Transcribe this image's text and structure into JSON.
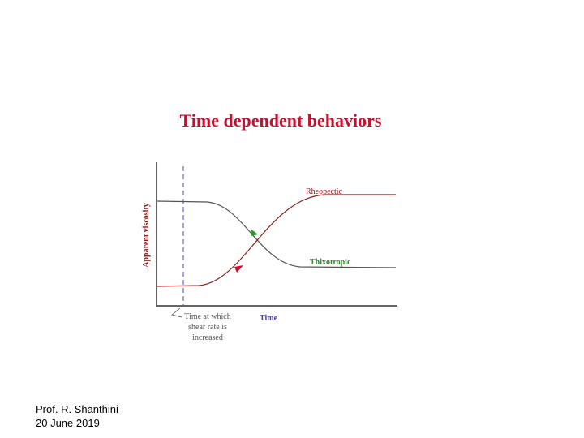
{
  "title": "Time dependent behaviors",
  "diagram": {
    "y_axis_label": "Apparent viscosity",
    "x_axis_label": "Time",
    "curves": [
      {
        "label": "Rheopectic"
      },
      {
        "label": "Thixotropic"
      }
    ],
    "marker_label": [
      "Time at which",
      "shear rate is",
      "increased"
    ]
  },
  "footer": {
    "author": "Prof. R. Shanthini",
    "date": "20 June 2019"
  }
}
